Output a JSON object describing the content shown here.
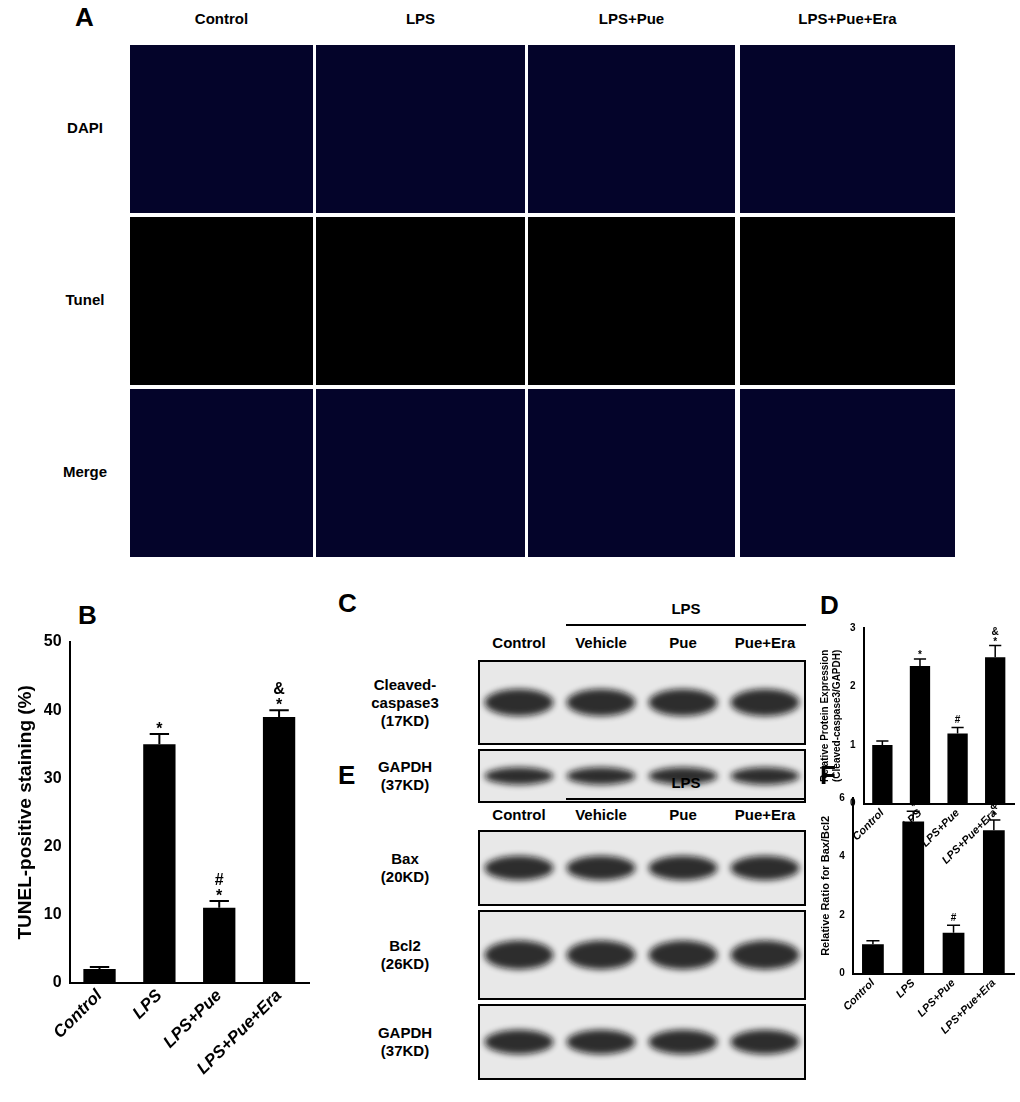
{
  "figure": {
    "A": {
      "panel": "A",
      "columns": [
        "Control",
        "LPS",
        "LPS+Pue",
        "LPS+Pue+Era"
      ],
      "rows": [
        "DAPI",
        "Tunel",
        "Merge"
      ]
    },
    "C": {
      "panel": "C",
      "group_label": "LPS",
      "lanes": [
        "Control",
        "Vehicle",
        "Pue",
        "Pue+Era"
      ],
      "rows": [
        [
          "Cleaved-",
          "caspase3",
          "(17KD)"
        ],
        [
          "GAPDH",
          "(37KD)"
        ]
      ]
    },
    "E": {
      "panel": "E",
      "group_label": "LPS",
      "lanes": [
        "Control",
        "Vehicle",
        "Pue",
        "Pue+Era"
      ],
      "rows": [
        [
          "Bax",
          "(20KD)"
        ],
        [
          "Bcl2",
          "(26KD)"
        ],
        [
          "GAPDH",
          "(37KD)"
        ]
      ]
    }
  },
  "chart_data": [
    {
      "type": "bar",
      "panel": "B",
      "y_label": "TUNEL-positive staining (%)",
      "categories": [
        "Control",
        "LPS",
        "LPS+Pue",
        "LPS+Pue+Era"
      ],
      "values": [
        2,
        35,
        11,
        39
      ],
      "errors": [
        0.3,
        1.5,
        1,
        1
      ],
      "annotations": [
        [],
        [
          "*"
        ],
        [
          "#",
          "*"
        ],
        [
          "&",
          "*"
        ]
      ],
      "color": "#000000",
      "ylim": [
        0,
        50
      ],
      "yticks": [
        0,
        10,
        20,
        30,
        40,
        50
      ],
      "grid": false
    },
    {
      "type": "bar",
      "panel": "D",
      "y_label": [
        "Relative Protein Expression",
        "(Cleaved-caspase3/GAPDH)"
      ],
      "categories": [
        "Control",
        "LPS",
        "LPS+Pue",
        "LPS+Pue+Era"
      ],
      "values": [
        1,
        2.35,
        1.2,
        2.5
      ],
      "errors": [
        0.07,
        0.12,
        0.1,
        0.2
      ],
      "annotations": [
        [],
        [
          "*"
        ],
        [
          "#"
        ],
        [
          "&",
          "*"
        ]
      ],
      "color": "#000000",
      "ylim": [
        0,
        3
      ],
      "yticks": [
        0,
        1,
        2,
        3
      ],
      "grid": false
    },
    {
      "type": "bar",
      "panel": "F",
      "y_label": "Relative Ratio for Bax/Bcl2",
      "categories": [
        "Control",
        "LPS",
        "LPS+Pue",
        "LPS+Pue+Era"
      ],
      "values": [
        1,
        5.2,
        1.4,
        4.9
      ],
      "errors": [
        0.12,
        0.35,
        0.25,
        0.35
      ],
      "annotations": [
        [],
        [
          "*"
        ],
        [
          "#"
        ],
        [
          "&",
          "*"
        ]
      ],
      "color": "#000000",
      "ylim": [
        0,
        6
      ],
      "yticks": [
        0,
        2,
        4,
        6
      ],
      "grid": false
    }
  ]
}
